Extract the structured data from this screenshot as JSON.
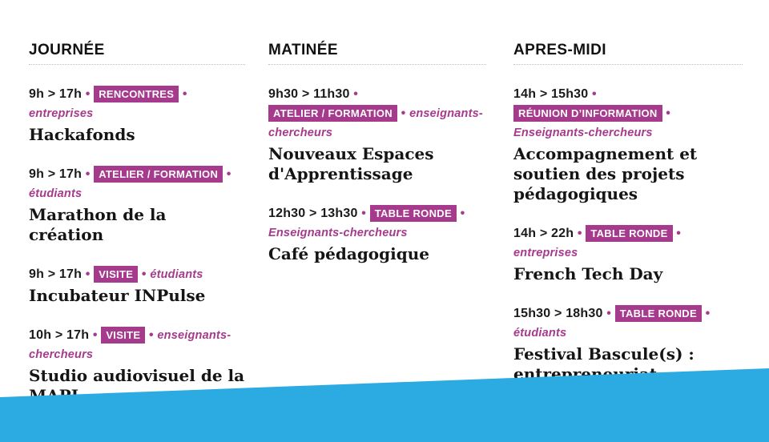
{
  "page": {
    "background": "#ffffff",
    "accent_magenta": "#a63a8c",
    "accent_blue": "#2babe2",
    "text_color": "#1a1a1a"
  },
  "separator": "•",
  "columns": [
    {
      "header": "JOURNÉE",
      "events": [
        {
          "time": "9h > 17h",
          "badge": "RENCONTRES",
          "audience": "entreprises",
          "title": "Hackafonds"
        },
        {
          "time": "9h > 17h",
          "badge": "ATELIER / FORMATION",
          "audience": "étudiants",
          "title": "Marathon de la création"
        },
        {
          "time": "9h > 17h",
          "badge": "VISITE",
          "audience": "étudiants",
          "title": "Incubateur INPulse"
        },
        {
          "time": "10h > 17h",
          "badge": "VISITE",
          "audience": "enseignants-chercheurs",
          "title": "Studio audiovisuel de la MAPI"
        }
      ]
    },
    {
      "header": "MATINÉE",
      "events": [
        {
          "time": "9h30 > 11h30",
          "badge": "ATELIER / FORMATION",
          "audience": "enseignants-chercheurs",
          "title": "Nouveaux Espaces d'Apprentissage"
        },
        {
          "time": "12h30 > 13h30",
          "badge": "TABLE RONDE",
          "audience": "Enseignants-chercheurs",
          "title": "Café pédagogique"
        }
      ]
    },
    {
      "header": "APRES-MIDI",
      "events": [
        {
          "time": "14h > 15h30",
          "badge": "RÉUNION D’INFORMATION",
          "audience": "Enseignants-chercheurs",
          "title": "Accompagnement et soutien des projets pédagogiques"
        },
        {
          "time": "14h > 22h",
          "badge": "TABLE RONDE",
          "audience": "entreprises",
          "title": "French Tech Day"
        },
        {
          "time": "15h30 > 18h30",
          "badge": "TABLE RONDE",
          "audience": "étudiants",
          "title": "Festival Bascule(s) : entrepreneuriat"
        }
      ]
    }
  ]
}
